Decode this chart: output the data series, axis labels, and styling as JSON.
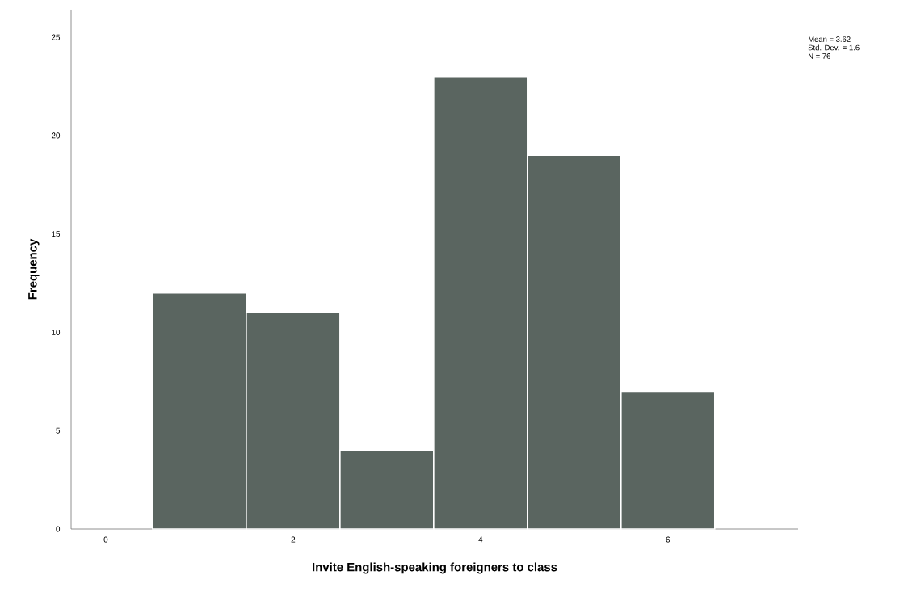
{
  "chart_data": {
    "type": "histogram",
    "xlabel": "Invite English-speaking foreigners to class",
    "ylabel": "Frequency",
    "bins": [
      0.5,
      1.5,
      2.5,
      3.5,
      4.5,
      5.5,
      6.5
    ],
    "values": [
      12,
      11,
      4,
      23,
      19,
      7
    ],
    "color": "#5a6560",
    "xlim": [
      -0.37,
      7.39
    ],
    "ylim": [
      0,
      26.4
    ],
    "xticks": [
      0,
      2,
      4,
      6
    ],
    "yticks": [
      0,
      5,
      10,
      15,
      20,
      25
    ],
    "annotations": [
      "Mean = 3.62",
      "Std. Dev. = 1.6",
      "N = 76"
    ]
  }
}
